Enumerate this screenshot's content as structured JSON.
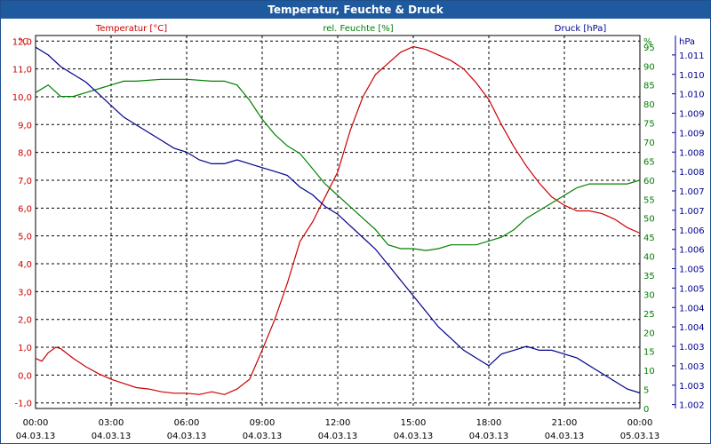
{
  "window": {
    "title": "Temperatur, Feuchte & Druck"
  },
  "colors": {
    "temperature": "#cc0000",
    "humidity": "#008000",
    "pressure": "#00008b",
    "titlebar": "#1f5a9e",
    "grid": "#000000",
    "axis_text": "#000000"
  },
  "chart_data": {
    "type": "line",
    "title": "Temperatur, Feuchte & Druck",
    "grid": true,
    "x": {
      "tick_labels": [
        [
          "00:00",
          "04.03.13"
        ],
        [
          "03:00",
          "04.03.13"
        ],
        [
          "06:00",
          "04.03.13"
        ],
        [
          "09:00",
          "04.03.13"
        ],
        [
          "12:00",
          "04.03.13"
        ],
        [
          "15:00",
          "04.03.13"
        ],
        [
          "18:00",
          "04.03.13"
        ],
        [
          "21:00",
          "04.03.13"
        ],
        [
          "00:00",
          "05.03.13"
        ]
      ],
      "range_hours": [
        0,
        24
      ]
    },
    "axes": {
      "temperature": {
        "label": "Temperatur [°C]",
        "unit": "°C",
        "range": [
          -1.2,
          12.2
        ],
        "ticks": [
          "-1,0",
          "0,0",
          "1,0",
          "2,0",
          "3,0",
          "4,0",
          "5,0",
          "6,0",
          "7,0",
          "8,0",
          "9,0",
          "10,0",
          "11,0",
          "12,0"
        ],
        "tick_values": [
          -1,
          0,
          1,
          2,
          3,
          4,
          5,
          6,
          7,
          8,
          9,
          10,
          11,
          12
        ]
      },
      "humidity": {
        "label": "rel. Feuchte [%]",
        "unit": "%",
        "range": [
          0,
          98
        ],
        "ticks": [
          "0",
          "5",
          "10",
          "15",
          "20",
          "25",
          "30",
          "35",
          "40",
          "45",
          "50",
          "55",
          "60",
          "65",
          "70",
          "75",
          "80",
          "85",
          "90",
          "95"
        ],
        "tick_values": [
          0,
          5,
          10,
          15,
          20,
          25,
          30,
          35,
          40,
          45,
          50,
          55,
          60,
          65,
          70,
          75,
          80,
          85,
          90,
          95
        ]
      },
      "pressure": {
        "label": "hPa",
        "unit": "hPa",
        "range": [
          1.0019,
          1.0115
        ],
        "ticks": [
          "1.002",
          "1.003",
          "1.003",
          "1.003",
          "1.004",
          "1.004",
          "1.005",
          "1.005",
          "1.006",
          "1.006",
          "1.007",
          "1.007",
          "1.008",
          "1.008",
          "1.009",
          "1.009",
          "1.010",
          "1.010",
          "1.011"
        ],
        "tick_values": [
          1.002,
          1.0025,
          1.003,
          1.0035,
          1.004,
          1.0045,
          1.005,
          1.0055,
          1.006,
          1.0065,
          1.007,
          1.0075,
          1.008,
          1.0085,
          1.009,
          1.0095,
          1.01,
          1.0105,
          1.011
        ]
      }
    },
    "legend": {
      "temperature": "Temperatur [°C]",
      "humidity": "rel. Feuchte [%]",
      "pressure": "Druck [hPa]"
    },
    "series": [
      {
        "name": "Temperatur [°C]",
        "axis": "temperature",
        "points": [
          [
            0,
            0.6
          ],
          [
            0.25,
            0.5
          ],
          [
            0.5,
            0.8
          ],
          [
            0.8,
            1.0
          ],
          [
            1,
            0.95
          ],
          [
            1.5,
            0.6
          ],
          [
            2,
            0.3
          ],
          [
            2.5,
            0.05
          ],
          [
            3,
            -0.15
          ],
          [
            3.5,
            -0.3
          ],
          [
            4,
            -0.45
          ],
          [
            4.5,
            -0.5
          ],
          [
            5,
            -0.6
          ],
          [
            5.5,
            -0.65
          ],
          [
            6,
            -0.65
          ],
          [
            6.5,
            -0.7
          ],
          [
            7,
            -0.6
          ],
          [
            7.5,
            -0.7
          ],
          [
            8,
            -0.5
          ],
          [
            8.5,
            -0.15
          ],
          [
            9,
            0.9
          ],
          [
            9.5,
            2.0
          ],
          [
            10,
            3.3
          ],
          [
            10.5,
            4.8
          ],
          [
            11,
            5.5
          ],
          [
            11.5,
            6.4
          ],
          [
            12,
            7.3
          ],
          [
            12.5,
            8.8
          ],
          [
            13,
            10.0
          ],
          [
            13.5,
            10.8
          ],
          [
            14,
            11.2
          ],
          [
            14.5,
            11.6
          ],
          [
            15,
            11.8
          ],
          [
            15.5,
            11.7
          ],
          [
            16,
            11.5
          ],
          [
            16.5,
            11.3
          ],
          [
            17,
            11.0
          ],
          [
            17.5,
            10.5
          ],
          [
            18,
            9.9
          ],
          [
            18.5,
            9.0
          ],
          [
            19,
            8.2
          ],
          [
            19.5,
            7.5
          ],
          [
            20,
            6.9
          ],
          [
            20.5,
            6.4
          ],
          [
            21,
            6.1
          ],
          [
            21.5,
            5.9
          ],
          [
            22,
            5.9
          ],
          [
            22.5,
            5.8
          ],
          [
            23,
            5.6
          ],
          [
            23.5,
            5.3
          ],
          [
            24,
            5.1
          ]
        ]
      },
      {
        "name": "rel. Feuchte [%]",
        "axis": "humidity",
        "points": [
          [
            0,
            83
          ],
          [
            0.5,
            85
          ],
          [
            1,
            82
          ],
          [
            1.5,
            82
          ],
          [
            2,
            83
          ],
          [
            2.5,
            84
          ],
          [
            3,
            85
          ],
          [
            3.5,
            86
          ],
          [
            4,
            86
          ],
          [
            5,
            86.5
          ],
          [
            6,
            86.5
          ],
          [
            7,
            86
          ],
          [
            7.5,
            86
          ],
          [
            8,
            85
          ],
          [
            8.5,
            81
          ],
          [
            9,
            76
          ],
          [
            9.5,
            72
          ],
          [
            10,
            69
          ],
          [
            10.5,
            67
          ],
          [
            11,
            63
          ],
          [
            11.5,
            59
          ],
          [
            12,
            56
          ],
          [
            12.5,
            53
          ],
          [
            13,
            50
          ],
          [
            13.5,
            47
          ],
          [
            14,
            43
          ],
          [
            14.5,
            42
          ],
          [
            15,
            42
          ],
          [
            15.5,
            41.5
          ],
          [
            16,
            42
          ],
          [
            16.5,
            43
          ],
          [
            17,
            43
          ],
          [
            17.5,
            43
          ],
          [
            18,
            44
          ],
          [
            18.5,
            45
          ],
          [
            19,
            47
          ],
          [
            19.5,
            50
          ],
          [
            20,
            52
          ],
          [
            20.5,
            54
          ],
          [
            21,
            56
          ],
          [
            21.5,
            58
          ],
          [
            22,
            59
          ],
          [
            22.5,
            59
          ],
          [
            23,
            59
          ],
          [
            23.5,
            59
          ],
          [
            24,
            60
          ]
        ]
      },
      {
        "name": "Druck [hPa]",
        "axis": "pressure",
        "points": [
          [
            0,
            1.0112
          ],
          [
            0.5,
            1.011
          ],
          [
            1,
            1.0107
          ],
          [
            1.5,
            1.0105
          ],
          [
            2,
            1.0103
          ],
          [
            2.5,
            1.01
          ],
          [
            3,
            1.0097
          ],
          [
            3.5,
            1.0094
          ],
          [
            4,
            1.0092
          ],
          [
            4.5,
            1.009
          ],
          [
            5,
            1.0088
          ],
          [
            5.5,
            1.0086
          ],
          [
            6,
            1.0085
          ],
          [
            6.5,
            1.0083
          ],
          [
            7,
            1.0082
          ],
          [
            7.5,
            1.0082
          ],
          [
            8,
            1.0083
          ],
          [
            8.5,
            1.0082
          ],
          [
            9,
            1.0081
          ],
          [
            9.5,
            1.008
          ],
          [
            10,
            1.0079
          ],
          [
            10.5,
            1.0076
          ],
          [
            11,
            1.0074
          ],
          [
            11.5,
            1.0071
          ],
          [
            12,
            1.0069
          ],
          [
            12.5,
            1.0066
          ],
          [
            13,
            1.0063
          ],
          [
            13.5,
            1.006
          ],
          [
            14,
            1.0056
          ],
          [
            14.5,
            1.0052
          ],
          [
            15,
            1.0048
          ],
          [
            15.5,
            1.0044
          ],
          [
            16,
            1.004
          ],
          [
            16.5,
            1.0037
          ],
          [
            17,
            1.0034
          ],
          [
            17.5,
            1.0032
          ],
          [
            18,
            1.003
          ],
          [
            18.5,
            1.0033
          ],
          [
            19,
            1.0034
          ],
          [
            19.5,
            1.0035
          ],
          [
            20,
            1.0034
          ],
          [
            20.5,
            1.0034
          ],
          [
            21,
            1.0033
          ],
          [
            21.5,
            1.0032
          ],
          [
            22,
            1.003
          ],
          [
            22.5,
            1.0028
          ],
          [
            23,
            1.0026
          ],
          [
            23.5,
            1.0024
          ],
          [
            24,
            1.0023
          ]
        ]
      }
    ]
  }
}
